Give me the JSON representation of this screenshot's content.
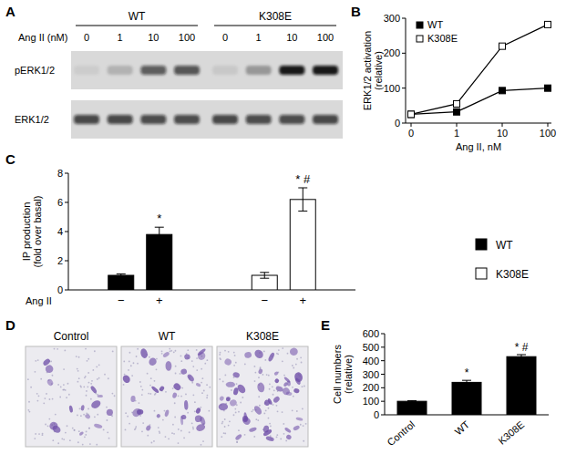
{
  "chart_data": [
    {
      "type": "blot",
      "panel": "A",
      "groups": [
        "WT",
        "K308E"
      ],
      "x_label": "Ang II (nM)",
      "categories": [
        0,
        1,
        10,
        100,
        0,
        1,
        10,
        100
      ],
      "series": [
        {
          "name": "pERK1/2",
          "values": [
            0.06,
            0.18,
            0.62,
            0.66,
            0.08,
            0.3,
            0.95,
            0.95
          ]
        },
        {
          "name": "ERK1/2",
          "values": [
            0.72,
            0.72,
            0.7,
            0.7,
            0.72,
            0.7,
            0.7,
            0.72
          ]
        }
      ]
    },
    {
      "type": "line",
      "panel": "B",
      "x_label": "Ang II, nM",
      "y_label": [
        "ERK1/2 activation",
        "(relative)"
      ],
      "categories": [
        0,
        1,
        10,
        100
      ],
      "ylim": [
        0,
        300
      ],
      "yticks": [
        0,
        100,
        200,
        300
      ],
      "legend": "upper left",
      "series": [
        {
          "name": "WT",
          "color": "#000000",
          "marker": "square",
          "values": [
            25,
            32,
            93,
            100
          ]
        },
        {
          "name": "K308E",
          "color": "#ffffff",
          "marker": "square",
          "values": [
            25,
            55,
            220,
            282
          ]
        }
      ]
    },
    {
      "type": "bar",
      "panel": "C",
      "x_label": "Ang II",
      "y_label": [
        "IP production",
        "(fold over basal)"
      ],
      "categories": [
        "−",
        "+"
      ],
      "ylim": [
        0,
        8
      ],
      "yticks": [
        0,
        2,
        4,
        6,
        8
      ],
      "legend": "right",
      "series": [
        {
          "name": "WT",
          "color": "#000000",
          "values": [
            1,
            3.8
          ],
          "errors": [
            0.1,
            0.5
          ],
          "annotations": [
            null,
            "*"
          ]
        },
        {
          "name": "K308E",
          "color": "#ffffff",
          "values": [
            1,
            6.2
          ],
          "errors": [
            0.2,
            0.8
          ],
          "annotations": [
            null,
            "* #"
          ]
        }
      ]
    },
    {
      "type": "image",
      "panel": "D",
      "categories": [
        "Control",
        "WT",
        "K308E"
      ]
    },
    {
      "type": "bar",
      "panel": "E",
      "y_label": [
        "Cell numbers",
        "(relative)"
      ],
      "categories": [
        "Control",
        "WT",
        "K308E"
      ],
      "values": [
        100,
        240,
        430
      ],
      "errors": [
        5,
        15,
        15
      ],
      "annotations": [
        null,
        "*",
        "* #"
      ],
      "color": "#000000",
      "ylim": [
        0,
        600
      ],
      "yticks": [
        0,
        100,
        200,
        300,
        400,
        500,
        600
      ]
    }
  ]
}
